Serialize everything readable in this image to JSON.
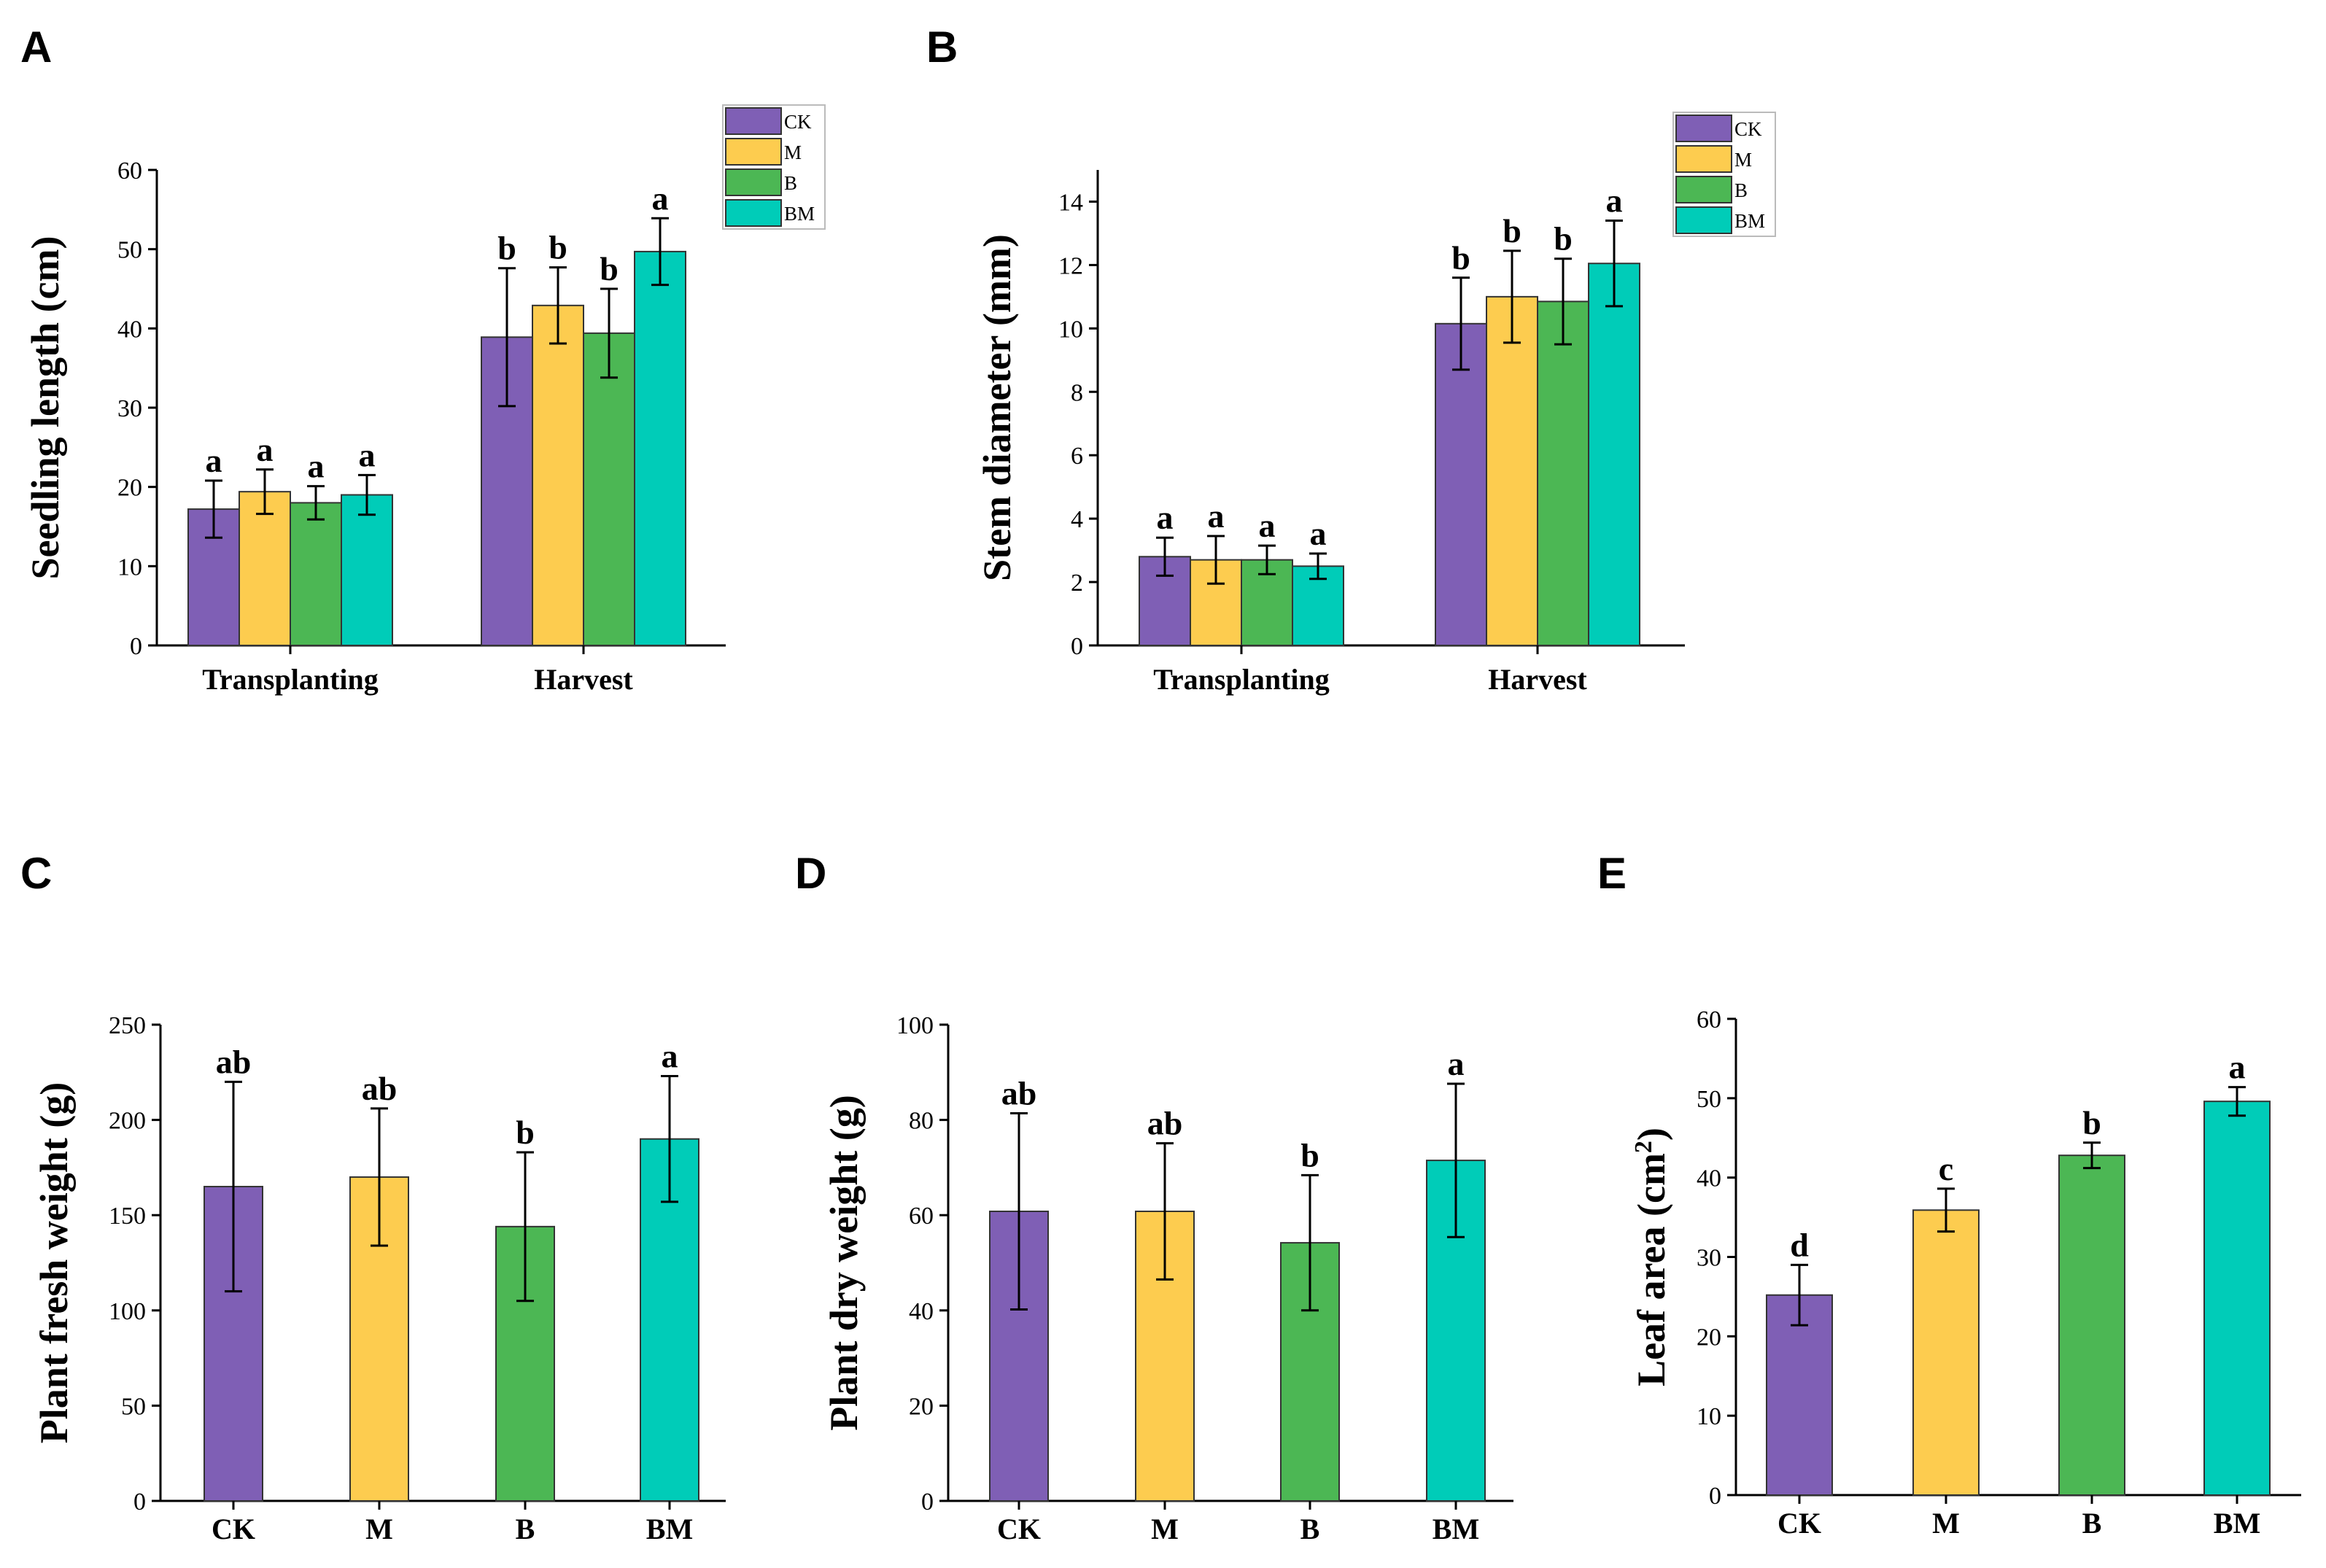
{
  "series_colors": {
    "CK": "#7f5fb5",
    "M": "#fdcc4f",
    "B": "#4cb754",
    "BM": "#00ccb8"
  },
  "chart_data": [
    {
      "id": "A",
      "letter": "A",
      "type": "bar",
      "grouped": true,
      "ylabel": "Seedling length (cm)",
      "ylim": [
        0,
        60
      ],
      "yticks": [
        0,
        10,
        20,
        30,
        40,
        50,
        60
      ],
      "categories": [
        "Transplanting",
        "Harvest"
      ],
      "legend": [
        "CK",
        "M",
        "B",
        "BM"
      ],
      "series": [
        {
          "name": "CK",
          "values": [
            17.2,
            38.9
          ],
          "errors": [
            3.6,
            8.7
          ],
          "letters": [
            "a",
            "b"
          ]
        },
        {
          "name": "M",
          "values": [
            19.4,
            42.9
          ],
          "errors": [
            2.8,
            4.8
          ],
          "letters": [
            "a",
            "b"
          ]
        },
        {
          "name": "B",
          "values": [
            18.0,
            39.4
          ],
          "errors": [
            2.1,
            5.6
          ],
          "letters": [
            "a",
            "b"
          ]
        },
        {
          "name": "BM",
          "values": [
            19.0,
            49.7
          ],
          "errors": [
            2.5,
            4.2
          ],
          "letters": [
            "a",
            "a"
          ]
        }
      ]
    },
    {
      "id": "B",
      "letter": "B",
      "type": "bar",
      "grouped": true,
      "ylabel": "Stem diameter (mm)",
      "ylim": [
        0,
        15
      ],
      "yticks": [
        0,
        2,
        4,
        6,
        8,
        10,
        12,
        14
      ],
      "categories": [
        "Transplanting",
        "Harvest"
      ],
      "legend": [
        "CK",
        "M",
        "B",
        "BM"
      ],
      "series": [
        {
          "name": "CK",
          "values": [
            2.8,
            10.15
          ],
          "errors": [
            0.6,
            1.45
          ],
          "letters": [
            "a",
            "b"
          ]
        },
        {
          "name": "M",
          "values": [
            2.7,
            11.0
          ],
          "errors": [
            0.75,
            1.45
          ],
          "letters": [
            "a",
            "b"
          ]
        },
        {
          "name": "B",
          "values": [
            2.7,
            10.85
          ],
          "errors": [
            0.45,
            1.35
          ],
          "letters": [
            "a",
            "b"
          ]
        },
        {
          "name": "BM",
          "values": [
            2.5,
            12.05
          ],
          "errors": [
            0.4,
            1.35
          ],
          "letters": [
            "a",
            "a"
          ]
        }
      ]
    },
    {
      "id": "C",
      "letter": "C",
      "type": "bar",
      "grouped": false,
      "ylabel": "Plant fresh weight (g)",
      "ylim": [
        0,
        250
      ],
      "yticks": [
        0,
        50,
        100,
        150,
        200,
        250
      ],
      "categories": [
        "CK",
        "M",
        "B",
        "BM"
      ],
      "values": [
        165,
        170,
        144,
        190
      ],
      "errors": [
        55,
        36,
        39,
        33
      ],
      "letters": [
        "ab",
        "ab",
        "b",
        "a"
      ]
    },
    {
      "id": "D",
      "letter": "D",
      "type": "bar",
      "grouped": false,
      "ylabel": "Plant dry weight (g)",
      "ylim": [
        0,
        100
      ],
      "yticks": [
        0,
        20,
        40,
        60,
        80,
        100
      ],
      "categories": [
        "CK",
        "M",
        "B",
        "BM"
      ],
      "values": [
        60.8,
        60.8,
        54.2,
        71.5
      ],
      "errors": [
        20.6,
        14.3,
        14.2,
        16.1
      ],
      "letters": [
        "ab",
        "ab",
        "b",
        "a"
      ]
    },
    {
      "id": "E",
      "letter": "E",
      "type": "bar",
      "grouped": false,
      "ylabel": "Leaf area (cm",
      "ylabel_superscript": "2",
      "ylabel_suffix": ")",
      "ylim": [
        0,
        60
      ],
      "yticks": [
        0,
        10,
        20,
        30,
        40,
        50,
        60
      ],
      "categories": [
        "CK",
        "M",
        "B",
        "BM"
      ],
      "values": [
        25.2,
        35.9,
        42.8,
        49.6
      ],
      "errors": [
        3.8,
        2.7,
        1.6,
        1.8
      ],
      "letters": [
        "d",
        "c",
        "b",
        "a"
      ]
    }
  ]
}
